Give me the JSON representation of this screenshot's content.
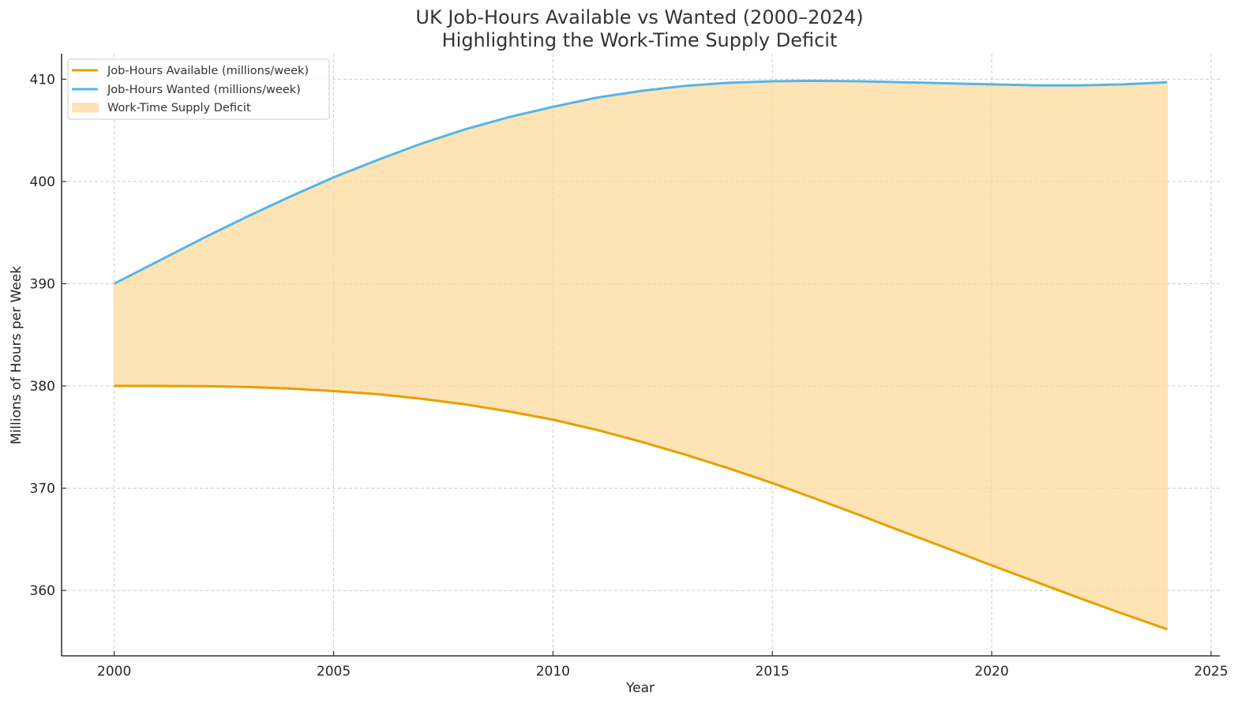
{
  "chart_data": {
    "type": "line",
    "title": "UK Job-Hours Available vs Wanted (2000–2024)",
    "subtitle": "Highlighting the Work-Time Supply Deficit",
    "xlabel": "Year",
    "ylabel": "Millions of Hours per Week",
    "xlim": [
      1998.8,
      2025.2
    ],
    "ylim": [
      353.6,
      412.5
    ],
    "xticks": [
      2000,
      2005,
      2010,
      2015,
      2020,
      2025
    ],
    "yticks": [
      360,
      370,
      380,
      390,
      400,
      410
    ],
    "xtick_labels": [
      "2000",
      "2005",
      "2010",
      "2015",
      "2020",
      "2025"
    ],
    "ytick_labels": [
      "360",
      "370",
      "380",
      "390",
      "400",
      "410"
    ],
    "grid": true,
    "legend_position": "top-left",
    "x": [
      2000,
      2001,
      2002,
      2003,
      2004,
      2005,
      2006,
      2007,
      2008,
      2009,
      2010,
      2011,
      2012,
      2013,
      2014,
      2015,
      2016,
      2017,
      2018,
      2019,
      2020,
      2021,
      2022,
      2023,
      2024
    ],
    "series": [
      {
        "name": "Job-Hours Available (millions/week)",
        "color": "#E69F00",
        "values": [
          380.0,
          380.0,
          379.98,
          379.9,
          379.75,
          379.5,
          379.2,
          378.75,
          378.2,
          377.5,
          376.7,
          375.7,
          374.55,
          373.3,
          371.95,
          370.5,
          368.95,
          367.35,
          365.7,
          364.1,
          362.45,
          360.85,
          359.25,
          357.7,
          356.2
        ]
      },
      {
        "name": "Job-Hours Wanted (millions/week)",
        "color": "#56B4E9",
        "values": [
          390.0,
          392.2,
          394.4,
          396.5,
          398.5,
          400.4,
          402.1,
          403.7,
          405.1,
          406.3,
          407.3,
          408.2,
          408.85,
          409.35,
          409.65,
          409.8,
          409.85,
          409.8,
          409.7,
          409.6,
          409.5,
          409.4,
          409.4,
          409.5,
          409.7
        ]
      }
    ],
    "fill": {
      "name": "Work-Time Supply Deficit",
      "between": [
        "Job-Hours Available (millions/week)",
        "Job-Hours Wanted (millions/week)"
      ],
      "color": "#FDD99B"
    }
  }
}
